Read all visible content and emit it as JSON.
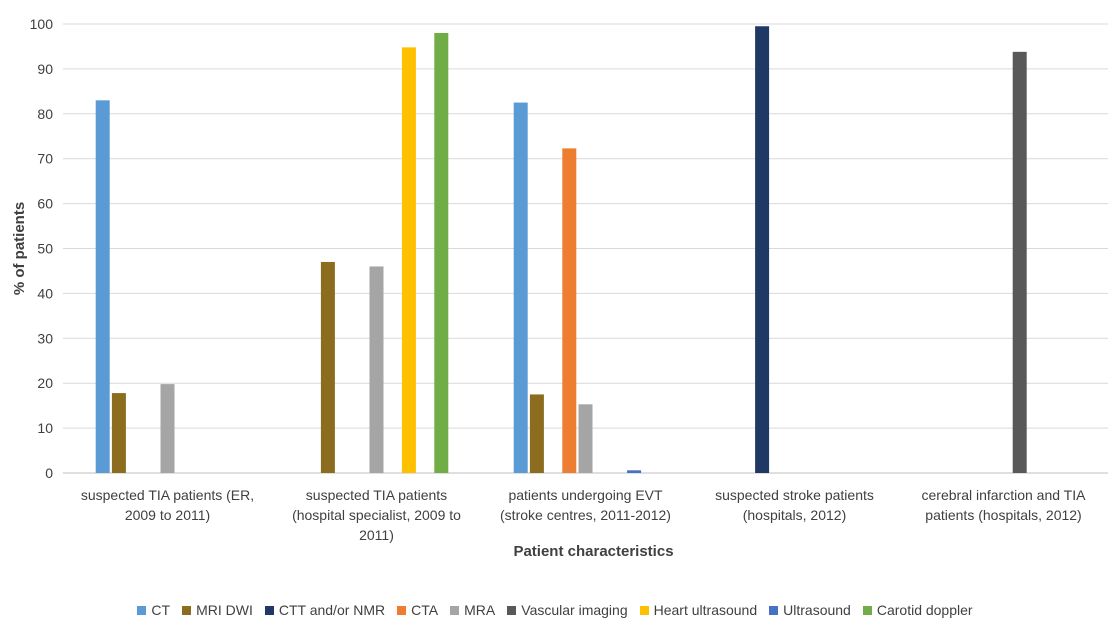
{
  "chart_data": {
    "type": "bar",
    "title": "",
    "xlabel": "Patient characteristics",
    "ylabel": "% of patients",
    "ylim": [
      0,
      100
    ],
    "yticks": [
      0,
      10,
      20,
      30,
      40,
      50,
      60,
      70,
      80,
      90,
      100
    ],
    "grid": true,
    "legend_position": "bottom",
    "categories": [
      [
        "suspected TIA patients (ER,",
        "2009 to 2011)"
      ],
      [
        "suspected TIA patients",
        "(hospital specialist, 2009 to",
        "2011)"
      ],
      [
        "patients undergoing EVT",
        "(stroke centres, 2011-2012)"
      ],
      [
        "suspected stroke patients",
        "(hospitals, 2012)"
      ],
      [
        "cerebral infarction and TIA",
        "patients (hospitals, 2012)"
      ]
    ],
    "series": [
      {
        "name": "CT",
        "color": "#5B9BD5",
        "values": [
          83,
          null,
          82.5,
          null,
          null
        ]
      },
      {
        "name": "MRI DWI",
        "color": "#8C6D1F",
        "values": [
          17.8,
          47,
          17.5,
          null,
          null
        ]
      },
      {
        "name": "CTT and/or NMR",
        "color": "#203864",
        "values": [
          null,
          null,
          null,
          99.5,
          null
        ]
      },
      {
        "name": "CTA",
        "color": "#ED7D31",
        "values": [
          null,
          null,
          72.3,
          null,
          null
        ]
      },
      {
        "name": "MRA",
        "color": "#A5A5A5",
        "values": [
          19.8,
          46,
          15.3,
          null,
          null
        ]
      },
      {
        "name": "Vascular imaging",
        "color": "#595959",
        "values": [
          null,
          null,
          null,
          null,
          93.8
        ]
      },
      {
        "name": "Heart ultrasound",
        "color": "#FFC000",
        "values": [
          null,
          94.8,
          null,
          null,
          null
        ]
      },
      {
        "name": "Ultrasound",
        "color": "#4472C4",
        "values": [
          null,
          null,
          0.6,
          null,
          null
        ]
      },
      {
        "name": "Carotid doppler",
        "color": "#70AD47",
        "values": [
          null,
          98,
          null,
          null,
          null
        ]
      }
    ]
  }
}
